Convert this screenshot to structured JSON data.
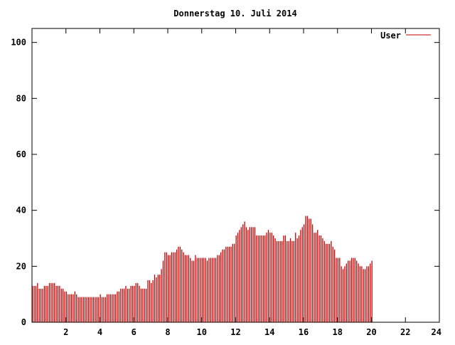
{
  "chart_data": {
    "type": "bar",
    "title": "Donnerstag 10. Juli 2014",
    "xlabel": "",
    "ylabel": "",
    "xlim": [
      0,
      24
    ],
    "ylim": [
      0,
      105
    ],
    "xticks": [
      2,
      4,
      6,
      8,
      10,
      12,
      14,
      16,
      18,
      20,
      22,
      24
    ],
    "yticks": [
      0,
      20,
      40,
      60,
      80,
      100
    ],
    "grid": false,
    "legend_position": "top-right",
    "colors": {
      "series": "#cc0000",
      "axis": "#000000",
      "background": "#ffffff"
    },
    "series": [
      {
        "name": "User",
        "interval_hours": 0.1,
        "values": [
          13,
          13,
          13,
          14,
          12,
          12,
          12,
          13,
          13,
          13,
          14,
          14,
          14,
          14,
          13,
          13,
          13,
          12,
          12,
          11,
          11,
          10,
          10,
          10,
          10,
          11,
          10,
          9,
          9,
          9,
          9,
          9,
          9,
          9,
          9,
          9,
          9,
          9,
          9,
          9,
          10,
          9,
          9,
          9,
          10,
          10,
          10,
          10,
          10,
          10,
          11,
          11,
          12,
          12,
          12,
          13,
          12,
          12,
          13,
          13,
          13,
          14,
          14,
          13,
          12,
          12,
          12,
          12,
          15,
          15,
          14,
          15,
          17,
          16,
          17,
          17,
          19,
          22,
          25,
          25,
          24,
          24,
          25,
          25,
          25,
          26,
          27,
          27,
          26,
          25,
          24,
          24,
          24,
          23,
          22,
          22,
          24,
          23,
          23,
          23,
          23,
          23,
          23,
          22,
          23,
          23,
          23,
          23,
          23,
          24,
          24,
          25,
          26,
          26,
          27,
          27,
          27,
          27,
          28,
          28,
          31,
          32,
          33,
          34,
          35,
          36,
          34,
          33,
          34,
          34,
          34,
          34,
          31,
          31,
          31,
          31,
          31,
          31,
          32,
          33,
          32,
          32,
          31,
          30,
          29,
          29,
          29,
          29,
          31,
          31,
          29,
          29,
          30,
          29,
          29,
          32,
          30,
          31,
          33,
          34,
          35,
          38,
          38,
          37,
          37,
          35,
          32,
          32,
          33,
          31,
          31,
          30,
          29,
          28,
          28,
          28,
          29,
          27,
          26,
          23,
          23,
          23,
          20,
          19,
          20,
          21,
          22,
          22,
          23,
          23,
          23,
          22,
          21,
          20,
          20,
          19,
          19,
          20,
          20,
          21,
          22
        ]
      }
    ]
  }
}
